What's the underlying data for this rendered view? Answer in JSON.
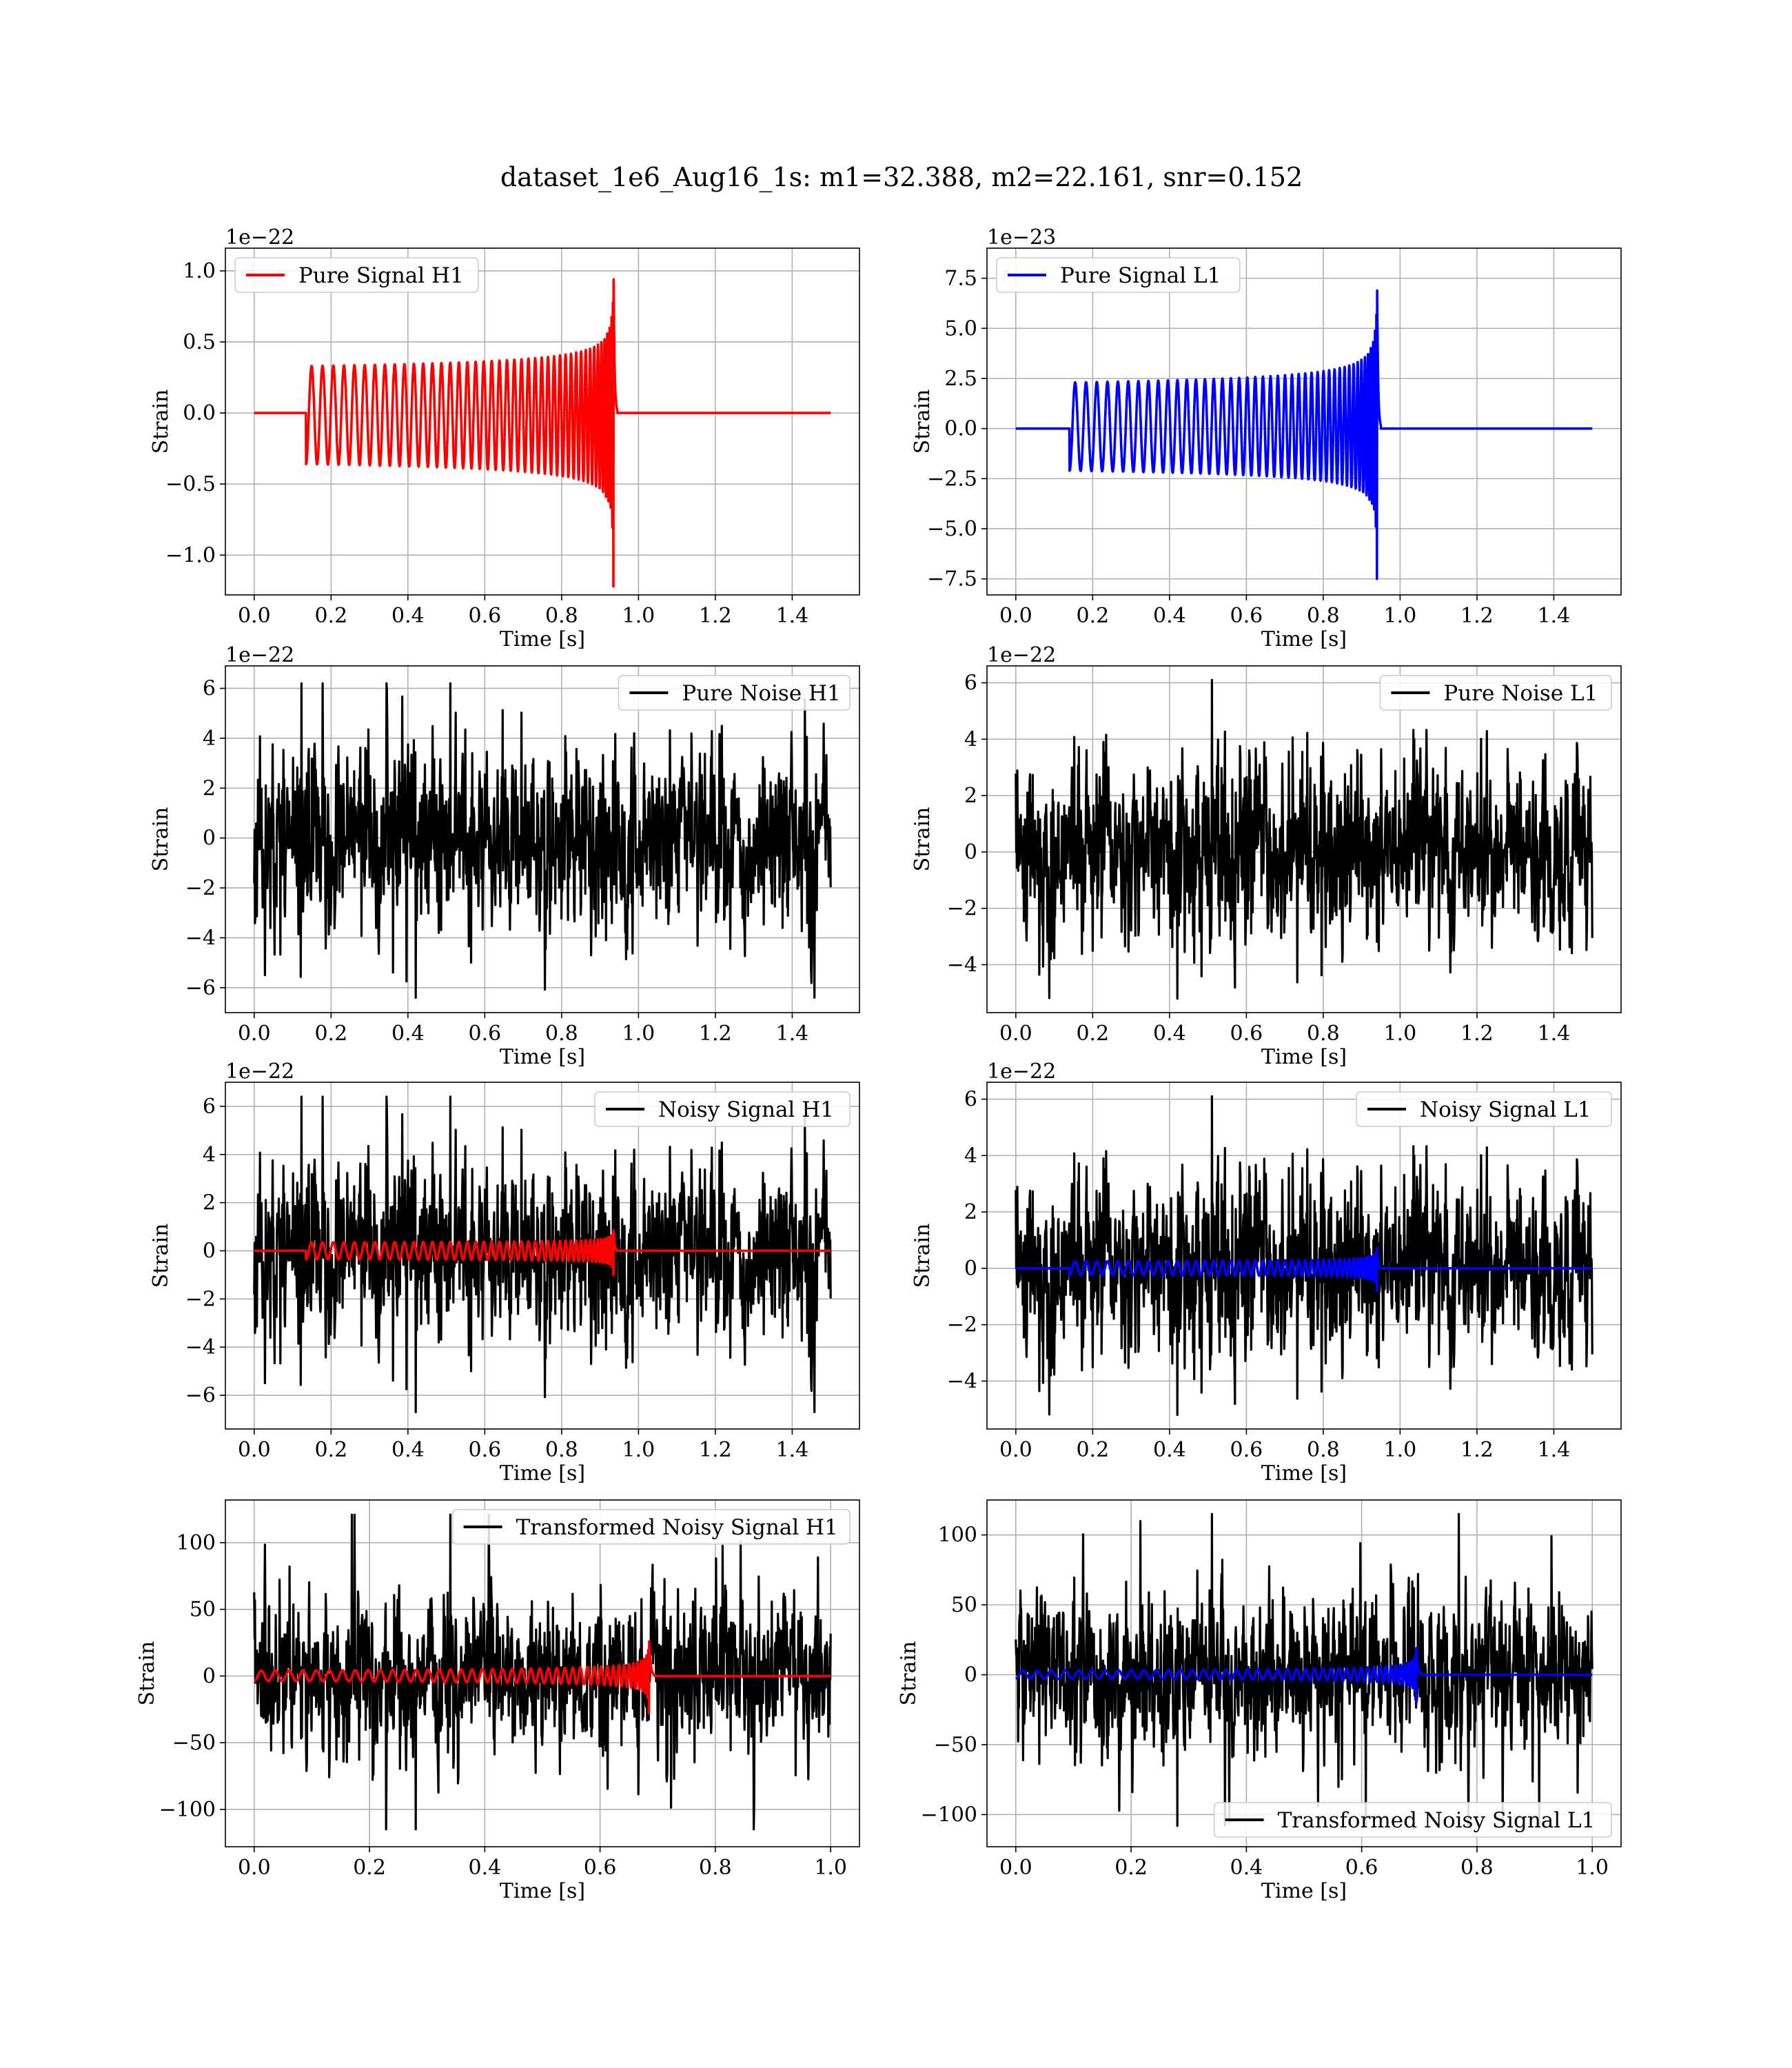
{
  "figure_title": "dataset_1e6_Aug16_1s: m1=32.388, m2=22.161, snr=0.152",
  "colors": {
    "red": "#ff0000",
    "blue": "#0000ff",
    "black": "#000000",
    "grid": "#b0b0b0"
  },
  "chart_data": [
    {
      "type": "line",
      "id": "pure-signal-h1",
      "title": "",
      "xlabel": "Time [s]",
      "ylabel": "Strain",
      "offset_text": "1e−22",
      "xlim": [
        -0.075,
        1.575
      ],
      "ylim": [
        -1.28,
        1.16
      ],
      "xticks": [
        0.0,
        0.2,
        0.4,
        0.6,
        0.8,
        1.0,
        1.2,
        1.4
      ],
      "xtick_labels": [
        "0.0",
        "0.2",
        "0.4",
        "0.6",
        "0.8",
        "1.0",
        "1.2",
        "1.4"
      ],
      "yticks": [
        1.0,
        0.5,
        0.0,
        -0.5,
        -1.0
      ],
      "ytick_labels": [
        "1.0",
        "0.5",
        "0.0",
        "−0.5",
        "−1.0"
      ],
      "grid": true,
      "legend_position": "upper left",
      "series": [
        {
          "name": "Pure Signal H1",
          "kind": "chirp",
          "color": "#ff0000",
          "t_start": 0.0,
          "t_end": 1.5,
          "t_onset": 0.135,
          "t_merger": 0.935,
          "amp_start": 0.33,
          "amp_peak": 1.12,
          "amp_trough": -1.22,
          "cycles": 44,
          "legend": true
        }
      ]
    },
    {
      "type": "line",
      "id": "pure-signal-l1",
      "title": "",
      "xlabel": "Time [s]",
      "ylabel": "Strain",
      "offset_text": "1e−23",
      "xlim": [
        -0.075,
        1.575
      ],
      "ylim": [
        -8.3,
        9.0
      ],
      "xticks": [
        0.0,
        0.2,
        0.4,
        0.6,
        0.8,
        1.0,
        1.2,
        1.4
      ],
      "xtick_labels": [
        "0.0",
        "0.2",
        "0.4",
        "0.6",
        "0.8",
        "1.0",
        "1.2",
        "1.4"
      ],
      "yticks": [
        7.5,
        5.0,
        2.5,
        0.0,
        -2.5,
        -5.0,
        -7.5
      ],
      "ytick_labels": [
        "7.5",
        "5.0",
        "2.5",
        "0.0",
        "−2.5",
        "−5.0",
        "−7.5"
      ],
      "grid": true,
      "legend_position": "upper left",
      "series": [
        {
          "name": "Pure Signal L1",
          "kind": "chirp",
          "color": "#0000ff",
          "t_start": 0.0,
          "t_end": 1.5,
          "t_onset": 0.14,
          "t_merger": 0.94,
          "amp_start": 2.3,
          "amp_peak": 8.2,
          "amp_trough": -7.5,
          "cycles": 44,
          "legend": true
        }
      ]
    },
    {
      "type": "line",
      "id": "pure-noise-h1",
      "title": "",
      "xlabel": "Time [s]",
      "ylabel": "Strain",
      "offset_text": "1e−22",
      "xlim": [
        -0.075,
        1.575
      ],
      "ylim": [
        -7.0,
        6.9
      ],
      "xticks": [
        0.0,
        0.2,
        0.4,
        0.6,
        0.8,
        1.0,
        1.2,
        1.4
      ],
      "xtick_labels": [
        "0.0",
        "0.2",
        "0.4",
        "0.6",
        "0.8",
        "1.0",
        "1.2",
        "1.4"
      ],
      "yticks": [
        6,
        4,
        2,
        0,
        -2,
        -4,
        -6
      ],
      "ytick_labels": [
        "6",
        "4",
        "2",
        "0",
        "−2",
        "−4",
        "−6"
      ],
      "grid": true,
      "legend_position": "upper right",
      "series": [
        {
          "name": "Pure Noise H1",
          "kind": "noise",
          "color": "#000000",
          "t_start": 0.0,
          "t_end": 1.5,
          "sigma": 1.6,
          "max": 6.2,
          "min": -6.4,
          "seed": 11,
          "legend": true
        }
      ]
    },
    {
      "type": "line",
      "id": "pure-noise-l1",
      "title": "",
      "xlabel": "Time [s]",
      "ylabel": "Strain",
      "offset_text": "1e−22",
      "xlim": [
        -0.075,
        1.575
      ],
      "ylim": [
        -5.7,
        6.6
      ],
      "xticks": [
        0.0,
        0.2,
        0.4,
        0.6,
        0.8,
        1.0,
        1.2,
        1.4
      ],
      "xtick_labels": [
        "0.0",
        "0.2",
        "0.4",
        "0.6",
        "0.8",
        "1.0",
        "1.2",
        "1.4"
      ],
      "yticks": [
        6,
        4,
        2,
        0,
        -2,
        -4
      ],
      "ytick_labels": [
        "6",
        "4",
        "2",
        "0",
        "−2",
        "−4"
      ],
      "grid": true,
      "legend_position": "upper right",
      "series": [
        {
          "name": "Pure Noise L1",
          "kind": "noise",
          "color": "#000000",
          "t_start": 0.0,
          "t_end": 1.5,
          "sigma": 1.4,
          "max": 6.1,
          "min": -5.2,
          "seed": 23,
          "legend": true
        }
      ]
    },
    {
      "type": "line",
      "id": "noisy-signal-h1",
      "title": "",
      "xlabel": "Time [s]",
      "ylabel": "Strain",
      "offset_text": "1e−22",
      "xlim": [
        -0.075,
        1.575
      ],
      "ylim": [
        -7.4,
        7.0
      ],
      "xticks": [
        0.0,
        0.2,
        0.4,
        0.6,
        0.8,
        1.0,
        1.2,
        1.4
      ],
      "xtick_labels": [
        "0.0",
        "0.2",
        "0.4",
        "0.6",
        "0.8",
        "1.0",
        "1.2",
        "1.4"
      ],
      "yticks": [
        6,
        4,
        2,
        0,
        -2,
        -4,
        -6
      ],
      "ytick_labels": [
        "6",
        "4",
        "2",
        "0",
        "−2",
        "−4",
        "−6"
      ],
      "grid": true,
      "legend_position": "upper right",
      "series": [
        {
          "name": "Noisy Signal H1",
          "kind": "noise",
          "color": "#000000",
          "t_start": 0.0,
          "t_end": 1.5,
          "sigma": 1.6,
          "max": 6.4,
          "min": -6.7,
          "seed": 11,
          "legend": true
        },
        {
          "kind": "chirp",
          "color": "#ff0000",
          "t_start": 0.0,
          "t_end": 1.5,
          "t_onset": 0.135,
          "t_merger": 0.935,
          "amp_start": 0.35,
          "amp_peak": 1.0,
          "amp_trough": -1.0,
          "cycles": 44,
          "legend": false
        }
      ]
    },
    {
      "type": "line",
      "id": "noisy-signal-l1",
      "title": "",
      "xlabel": "Time [s]",
      "ylabel": "Strain",
      "offset_text": "1e−22",
      "xlim": [
        -0.075,
        1.575
      ],
      "ylim": [
        -5.7,
        6.6
      ],
      "xticks": [
        0.0,
        0.2,
        0.4,
        0.6,
        0.8,
        1.0,
        1.2,
        1.4
      ],
      "xtick_labels": [
        "0.0",
        "0.2",
        "0.4",
        "0.6",
        "0.8",
        "1.0",
        "1.2",
        "1.4"
      ],
      "yticks": [
        6,
        4,
        2,
        0,
        -2,
        -4
      ],
      "ytick_labels": [
        "6",
        "4",
        "2",
        "0",
        "−2",
        "−4"
      ],
      "grid": true,
      "legend_position": "upper right",
      "series": [
        {
          "name": "Noisy Signal L1",
          "kind": "noise",
          "color": "#000000",
          "t_start": 0.0,
          "t_end": 1.5,
          "sigma": 1.4,
          "max": 6.1,
          "min": -5.2,
          "seed": 23,
          "legend": true
        },
        {
          "kind": "chirp",
          "color": "#0000ff",
          "t_start": 0.0,
          "t_end": 1.5,
          "t_onset": 0.14,
          "t_merger": 0.94,
          "amp_start": 0.25,
          "amp_peak": 0.85,
          "amp_trough": -0.8,
          "cycles": 44,
          "legend": false
        }
      ]
    },
    {
      "type": "line",
      "id": "transformed-noisy-signal-h1",
      "title": "",
      "xlabel": "Time [s]",
      "ylabel": "Strain",
      "offset_text": "",
      "xlim": [
        -0.05,
        1.05
      ],
      "ylim": [
        -128,
        132
      ],
      "xticks": [
        0.0,
        0.2,
        0.4,
        0.6,
        0.8,
        1.0
      ],
      "xtick_labels": [
        "0.0",
        "0.2",
        "0.4",
        "0.6",
        "0.8",
        "1.0"
      ],
      "yticks": [
        100,
        50,
        0,
        -50,
        -100
      ],
      "ytick_labels": [
        "100",
        "50",
        "0",
        "−50",
        "−100"
      ],
      "grid": true,
      "legend_position": "upper right",
      "series": [
        {
          "name": "Transformed Noisy Signal H1",
          "kind": "noise",
          "color": "#000000",
          "t_start": 0.0,
          "t_end": 1.0,
          "sigma": 26,
          "max": 121,
          "min": -115,
          "seed": 37,
          "legend": true
        },
        {
          "kind": "chirp",
          "color": "#ff0000",
          "t_start": 0.0,
          "t_end": 1.0,
          "t_onset": 0.0,
          "t_merger": 0.685,
          "amp_start": 4,
          "amp_peak": 30,
          "amp_trough": -28,
          "cycles": 44,
          "legend": false
        }
      ]
    },
    {
      "type": "line",
      "id": "transformed-noisy-signal-l1",
      "title": "",
      "xlabel": "Time [s]",
      "ylabel": "Strain",
      "offset_text": "",
      "xlim": [
        -0.05,
        1.05
      ],
      "ylim": [
        -123,
        125
      ],
      "xticks": [
        0.0,
        0.2,
        0.4,
        0.6,
        0.8,
        1.0
      ],
      "xtick_labels": [
        "0.0",
        "0.2",
        "0.4",
        "0.6",
        "0.8",
        "1.0"
      ],
      "yticks": [
        100,
        50,
        0,
        -50,
        -100
      ],
      "ytick_labels": [
        "100",
        "50",
        "0",
        "−50",
        "−100"
      ],
      "grid": true,
      "legend_position": "lower right",
      "series": [
        {
          "name": "Transformed Noisy Signal L1",
          "kind": "noise",
          "color": "#000000",
          "t_start": 0.0,
          "t_end": 1.0,
          "sigma": 25,
          "max": 115,
          "min": -108,
          "seed": 53,
          "legend": true
        },
        {
          "kind": "chirp",
          "color": "#0000ff",
          "t_start": 0.0,
          "t_end": 1.0,
          "t_onset": 0.0,
          "t_merger": 0.695,
          "amp_start": 3,
          "amp_peak": 22,
          "amp_trough": -20,
          "cycles": 44,
          "legend": false
        }
      ]
    }
  ]
}
